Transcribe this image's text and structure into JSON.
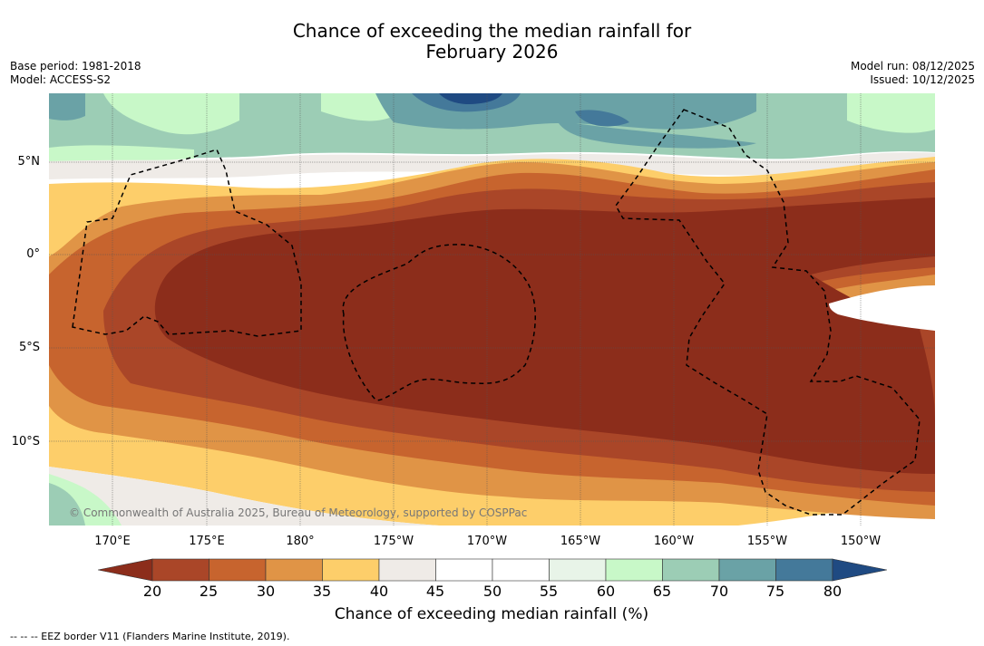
{
  "title": {
    "line1": "Chance of exceeding the median rainfall for",
    "line2": "February 2026"
  },
  "meta": {
    "base_period": "Base period: 1981-2018",
    "model": "Model: ACCESS-S2",
    "model_run": "Model run: 08/12/2025",
    "issued": "Issued: 10/12/2025"
  },
  "map": {
    "lat_labels": [
      "5°N",
      "0°",
      "5°S",
      "10°S"
    ],
    "lon_labels": [
      "170°E",
      "175°E",
      "180°",
      "175°W",
      "170°W",
      "165°W",
      "160°W",
      "155°W",
      "150°W"
    ],
    "credit": "© Commonwealth of Australia 2025, Bureau of Meteorology, supported by COSPPac"
  },
  "colorbar": {
    "ticks": [
      "20",
      "25",
      "30",
      "35",
      "40",
      "45",
      "50",
      "55",
      "60",
      "65",
      "70",
      "75",
      "80"
    ],
    "colors": [
      "#8c2d1b",
      "#aa4628",
      "#c7642e",
      "#e09446",
      "#fdce6a",
      "#efebe7",
      "#ffffff",
      "#ffffff",
      "#e8f4e8",
      "#c8f8c8",
      "#9ccdb5",
      "#6aa2a6",
      "#44799a",
      "#1f4a82"
    ],
    "label": "Chance of exceeding median rainfall (%)"
  },
  "legend": {
    "eez": "--  --  -- EEZ border V11 (Flanders Marine Institute, 2019)."
  }
}
